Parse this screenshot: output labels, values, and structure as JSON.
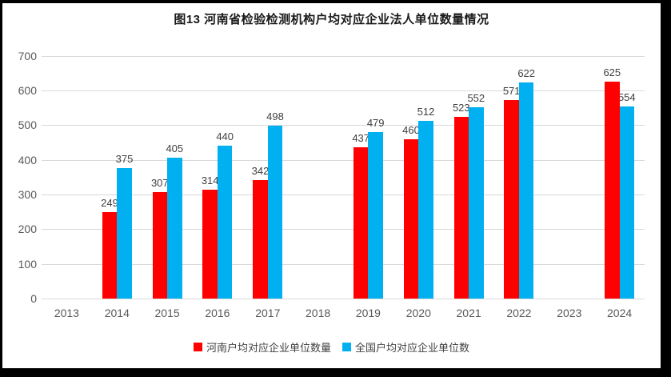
{
  "page": {
    "background_color": "#ffffff",
    "frame_color": "#000000"
  },
  "chart_data": {
    "type": "bar",
    "title": "图13 河南省检验检测机构户均对应企业法人单位数量情况",
    "categories": [
      "2013",
      "2014",
      "2015",
      "2016",
      "2017",
      "2018",
      "2019",
      "2020",
      "2021",
      "2022",
      "2023",
      "2024"
    ],
    "series": [
      {
        "name": "河南户均对应企业单位数量",
        "color": "#FF0000",
        "values": [
          null,
          249,
          307,
          314,
          342,
          null,
          437,
          460,
          523,
          571,
          null,
          625
        ]
      },
      {
        "name": "全国户均对应企业单位数",
        "color": "#00B0F0",
        "values": [
          null,
          375,
          405,
          440,
          498,
          null,
          479,
          512,
          552,
          622,
          null,
          554
        ]
      }
    ],
    "xlabel": "",
    "ylabel": "",
    "ylim": [
      0,
      700
    ],
    "yticks": [
      0,
      100,
      200,
      300,
      400,
      500,
      600,
      700
    ],
    "grid": true,
    "legend_position": "bottom",
    "gridline_color": "#D9D9D9",
    "axis_label_color": "#595959",
    "data_label_color": "#404040"
  }
}
